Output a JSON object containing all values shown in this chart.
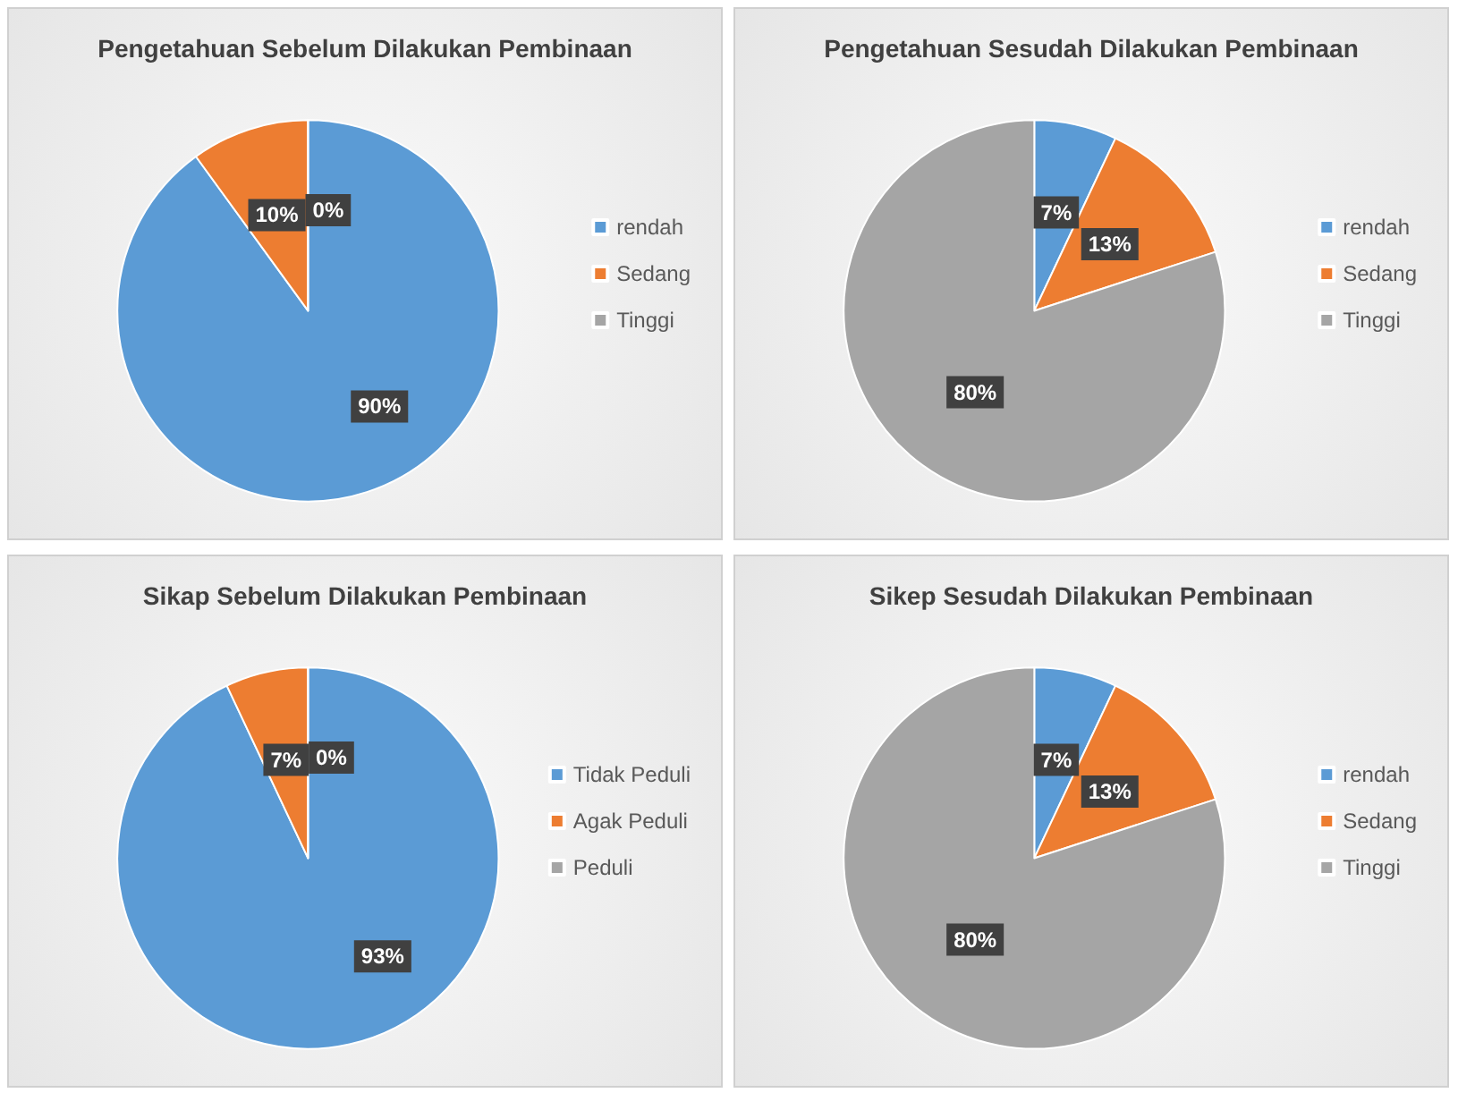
{
  "chart_data": [
    {
      "type": "pie",
      "title": "Pengetahuan Sebelum Dilakukan Pembinaan",
      "categories": [
        "rendah",
        "Sedang",
        "Tinggi"
      ],
      "values": [
        90,
        10,
        0
      ],
      "value_labels": [
        "90%",
        "10%",
        "0%"
      ],
      "colors": [
        "#5b9bd5",
        "#ed7d31",
        "#a5a5a5"
      ],
      "legend": "right"
    },
    {
      "type": "pie",
      "title": "Pengetahuan Sesudah Dilakukan Pembinaan",
      "categories": [
        "rendah",
        "Sedang",
        "Tinggi"
      ],
      "values": [
        7,
        13,
        80
      ],
      "value_labels": [
        "7%",
        "13%",
        "80%"
      ],
      "colors": [
        "#5b9bd5",
        "#ed7d31",
        "#a5a5a5"
      ],
      "legend": "right"
    },
    {
      "type": "pie",
      "title": "Sikap Sebelum Dilakukan Pembinaan",
      "categories": [
        "Tidak Peduli",
        "Agak Peduli",
        "Peduli"
      ],
      "values": [
        93,
        7,
        0
      ],
      "value_labels": [
        "93%",
        "7%",
        "0%"
      ],
      "colors": [
        "#5b9bd5",
        "#ed7d31",
        "#a5a5a5"
      ],
      "legend": "right"
    },
    {
      "type": "pie",
      "title": "Sikep Sesudah Dilakukan Pembinaan",
      "categories": [
        "rendah",
        "Sedang",
        "Tinggi"
      ],
      "values": [
        7,
        13,
        80
      ],
      "value_labels": [
        "7%",
        "13%",
        "80%"
      ],
      "colors": [
        "#5b9bd5",
        "#ed7d31",
        "#a5a5a5"
      ],
      "legend": "right"
    }
  ]
}
